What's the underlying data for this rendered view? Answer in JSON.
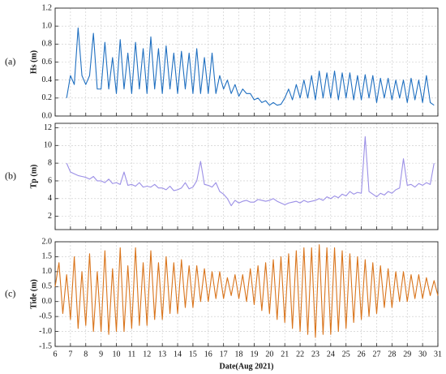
{
  "chart_data": [
    {
      "type": "line",
      "panel_label": "(a)",
      "y_label": "Hs (m)",
      "grid": true,
      "xlim": [
        6,
        31
      ],
      "xticks": [
        6,
        7,
        8,
        9,
        10,
        11,
        12,
        13,
        14,
        15,
        16,
        17,
        18,
        19,
        20,
        21,
        22,
        23,
        24,
        25,
        26,
        27,
        28,
        29,
        30,
        31
      ],
      "ylim": [
        0,
        1.2
      ],
      "yticks": [
        {
          "value": 0,
          "label": "0.0"
        },
        {
          "value": 0.2,
          "label": "0.2"
        },
        {
          "value": 0.4,
          "label": "0.4"
        },
        {
          "value": 0.6,
          "label": "0.6"
        },
        {
          "value": 0.8,
          "label": "0.8"
        },
        {
          "value": 1,
          "label": "1.0"
        },
        {
          "value": 1.2,
          "label": "1.2"
        }
      ],
      "x": [
        6.75,
        7,
        7.25,
        7.5,
        7.75,
        8,
        8.25,
        8.5,
        8.75,
        9,
        9.25,
        9.5,
        9.75,
        10,
        10.25,
        10.5,
        10.75,
        11,
        11.25,
        11.5,
        11.75,
        12,
        12.25,
        12.5,
        12.75,
        13,
        13.25,
        13.5,
        13.75,
        14,
        14.25,
        14.5,
        14.75,
        15,
        15.25,
        15.5,
        15.75,
        16,
        16.25,
        16.5,
        16.75,
        17,
        17.25,
        17.5,
        17.75,
        18,
        18.25,
        18.5,
        18.75,
        19,
        19.25,
        19.5,
        19.75,
        20,
        20.25,
        20.5,
        20.75,
        21,
        21.25,
        21.5,
        21.75,
        22,
        22.25,
        22.5,
        22.75,
        23,
        23.25,
        23.5,
        23.75,
        24,
        24.25,
        24.5,
        24.75,
        25,
        25.25,
        25.5,
        25.75,
        26,
        26.25,
        26.5,
        26.75,
        27,
        27.25,
        27.5,
        27.75,
        28,
        28.25,
        28.5,
        28.75,
        29,
        29.25,
        29.5,
        29.75,
        30,
        30.25,
        30.5,
        30.75
      ],
      "series": [
        {
          "color": "#1f6fc0",
          "values": [
            0.2,
            0.45,
            0.35,
            0.98,
            0.45,
            0.35,
            0.45,
            0.92,
            0.3,
            0.3,
            0.82,
            0.3,
            0.65,
            0.25,
            0.85,
            0.3,
            0.7,
            0.25,
            0.82,
            0.3,
            0.75,
            0.25,
            0.88,
            0.3,
            0.75,
            0.25,
            0.78,
            0.3,
            0.7,
            0.25,
            0.72,
            0.3,
            0.7,
            0.25,
            0.75,
            0.25,
            0.65,
            0.25,
            0.7,
            0.25,
            0.45,
            0.3,
            0.4,
            0.25,
            0.35,
            0.22,
            0.3,
            0.25,
            0.25,
            0.18,
            0.2,
            0.15,
            0.17,
            0.12,
            0.15,
            0.12,
            0.13,
            0.2,
            0.3,
            0.18,
            0.35,
            0.2,
            0.4,
            0.2,
            0.45,
            0.18,
            0.5,
            0.2,
            0.48,
            0.2,
            0.5,
            0.18,
            0.48,
            0.2,
            0.48,
            0.18,
            0.45,
            0.18,
            0.46,
            0.2,
            0.45,
            0.15,
            0.42,
            0.2,
            0.42,
            0.18,
            0.4,
            0.2,
            0.4,
            0.15,
            0.42,
            0.18,
            0.4,
            0.15,
            0.45,
            0.15,
            0.12
          ]
        }
      ]
    },
    {
      "type": "line",
      "panel_label": "(b)",
      "y_label": "Tp (m)",
      "grid": true,
      "xlim": [
        6,
        31
      ],
      "xticks": [
        6,
        7,
        8,
        9,
        10,
        11,
        12,
        13,
        14,
        15,
        16,
        17,
        18,
        19,
        20,
        21,
        22,
        23,
        24,
        25,
        26,
        27,
        28,
        29,
        30,
        31
      ],
      "ylim": [
        0.5,
        12.5
      ],
      "yticks": [
        2,
        4,
        6,
        8,
        10,
        12
      ],
      "x": [
        6.75,
        7,
        7.25,
        7.5,
        7.75,
        8,
        8.25,
        8.5,
        8.75,
        9,
        9.25,
        9.5,
        9.75,
        10,
        10.25,
        10.5,
        10.75,
        11,
        11.25,
        11.5,
        11.75,
        12,
        12.25,
        12.5,
        12.75,
        13,
        13.25,
        13.5,
        13.75,
        14,
        14.25,
        14.5,
        14.75,
        15,
        15.25,
        15.5,
        15.75,
        16,
        16.25,
        16.5,
        16.75,
        17,
        17.25,
        17.5,
        17.75,
        18,
        18.25,
        18.5,
        18.75,
        19,
        19.25,
        19.5,
        19.75,
        20,
        20.25,
        20.5,
        20.75,
        21,
        21.25,
        21.5,
        21.75,
        22,
        22.25,
        22.5,
        22.75,
        23,
        23.25,
        23.5,
        23.75,
        24,
        24.25,
        24.5,
        24.75,
        25,
        25.25,
        25.5,
        25.75,
        26,
        26.25,
        26.5,
        26.75,
        27,
        27.25,
        27.5,
        27.75,
        28,
        28.25,
        28.5,
        28.75,
        29,
        29.25,
        29.5,
        29.75,
        30,
        30.25,
        30.5,
        30.75
      ],
      "series": [
        {
          "color": "#9b8fe6",
          "values": [
            8.0,
            7.0,
            6.8,
            6.6,
            6.5,
            6.4,
            6.2,
            6.5,
            6.0,
            6.0,
            5.8,
            6.2,
            5.7,
            5.8,
            5.6,
            7.0,
            5.5,
            5.6,
            5.4,
            5.8,
            5.3,
            5.4,
            5.3,
            5.6,
            5.2,
            5.2,
            5.0,
            5.4,
            4.9,
            5.0,
            5.2,
            5.8,
            5.1,
            5.3,
            6.0,
            8.2,
            5.6,
            5.5,
            5.3,
            5.8,
            4.8,
            4.5,
            4.0,
            3.2,
            3.8,
            3.5,
            3.7,
            3.8,
            3.6,
            3.6,
            3.9,
            3.8,
            3.7,
            3.8,
            4.0,
            3.7,
            3.5,
            3.3,
            3.5,
            3.6,
            3.7,
            3.5,
            3.8,
            3.6,
            3.7,
            3.8,
            4.0,
            3.8,
            4.2,
            4.0,
            4.3,
            4.1,
            4.5,
            4.3,
            4.8,
            4.5,
            4.7,
            4.6,
            11.0,
            4.8,
            4.5,
            4.2,
            4.6,
            4.4,
            4.8,
            4.6,
            5.0,
            5.2,
            8.5,
            5.5,
            5.6,
            5.3,
            5.7,
            5.5,
            5.8,
            5.6,
            8.0
          ]
        }
      ]
    },
    {
      "type": "line",
      "panel_label": "(c)",
      "y_label": "Tide (m)",
      "x_label": "Date(Aug 2021)",
      "grid": true,
      "xlim": [
        6,
        31
      ],
      "xticks": [
        6,
        7,
        8,
        9,
        10,
        11,
        12,
        13,
        14,
        15,
        16,
        17,
        18,
        19,
        20,
        21,
        22,
        23,
        24,
        25,
        26,
        27,
        28,
        29,
        30,
        31
      ],
      "ylim": [
        -1.5,
        2.0
      ],
      "yticks": [
        {
          "value": -1.5,
          "label": "-1.5"
        },
        {
          "value": -1,
          "label": "-1.0"
        },
        {
          "value": -0.5,
          "label": "-0.5"
        },
        {
          "value": 0,
          "label": "0.0"
        },
        {
          "value": 0.5,
          "label": "0.5"
        },
        {
          "value": 1,
          "label": "1.0"
        },
        {
          "value": 1.5,
          "label": "1.5"
        },
        {
          "value": 2,
          "label": "2.0"
        }
      ],
      "x": [
        6,
        6.25,
        6.5,
        6.75,
        7,
        7.25,
        7.5,
        7.75,
        8,
        8.25,
        8.5,
        8.75,
        9,
        9.25,
        9.5,
        9.75,
        10,
        10.25,
        10.5,
        10.75,
        11,
        11.25,
        11.5,
        11.75,
        12,
        12.25,
        12.5,
        12.75,
        13,
        13.25,
        13.5,
        13.75,
        14,
        14.25,
        14.5,
        14.75,
        15,
        15.25,
        15.5,
        15.75,
        16,
        16.25,
        16.5,
        16.75,
        17,
        17.25,
        17.5,
        17.75,
        18,
        18.25,
        18.5,
        18.75,
        19,
        19.25,
        19.5,
        19.75,
        20,
        20.25,
        20.5,
        20.75,
        21,
        21.25,
        21.5,
        21.75,
        22,
        22.25,
        22.5,
        22.75,
        23,
        23.25,
        23.5,
        23.75,
        24,
        24.25,
        24.5,
        24.75,
        25,
        25.25,
        25.5,
        25.75,
        26,
        26.25,
        26.5,
        26.75,
        27,
        27.25,
        27.5,
        27.75,
        28,
        28.25,
        28.5,
        28.75,
        29,
        29.25,
        29.5,
        29.75,
        30,
        30.25,
        30.5,
        30.75,
        31
      ],
      "series": [
        {
          "color": "#d9741b",
          "values": [
            0.5,
            1.3,
            -0.4,
            0.9,
            -0.6,
            1.5,
            -0.9,
            1.0,
            -0.8,
            1.6,
            -1.0,
            1.0,
            -1.0,
            1.7,
            -1.1,
            1.1,
            -1.0,
            1.8,
            -1.0,
            1.2,
            -0.9,
            1.8,
            -0.8,
            1.3,
            -0.8,
            1.7,
            -0.6,
            1.3,
            -0.6,
            1.5,
            -0.4,
            1.3,
            -0.4,
            1.4,
            -0.2,
            1.2,
            -0.2,
            1.2,
            0.0,
            1.1,
            0.0,
            1.0,
            0.1,
            1.0,
            0.1,
            0.8,
            0.2,
            0.9,
            0.1,
            0.9,
            0.0,
            1.1,
            -0.1,
            1.2,
            -0.3,
            1.3,
            -0.4,
            1.4,
            -0.6,
            1.5,
            -0.7,
            1.6,
            -0.9,
            1.7,
            -1.0,
            1.8,
            -1.1,
            1.8,
            -1.2,
            1.9,
            -1.1,
            1.8,
            -1.1,
            1.8,
            -1.0,
            1.7,
            -0.9,
            1.6,
            -0.7,
            1.5,
            -0.6,
            1.4,
            -0.5,
            1.3,
            -0.4,
            1.2,
            -0.2,
            1.1,
            -0.2,
            1.0,
            0.0,
            1.0,
            0.0,
            0.9,
            0.1,
            0.9,
            0.1,
            0.8,
            0.2,
            0.7,
            0.2
          ]
        }
      ]
    }
  ]
}
